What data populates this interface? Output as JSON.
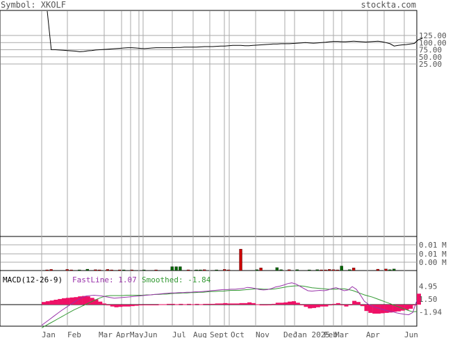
{
  "header": {
    "symbol_text": "Symbol: XKOLF",
    "site": "stockta.com"
  },
  "chart_data": [
    {
      "type": "line",
      "panel": "price",
      "ytick_labels": [
        "125.00",
        "100.00",
        "75.00",
        "50.00",
        "25.00"
      ],
      "ytick_values": [
        125,
        100,
        75,
        50,
        25
      ],
      "series": [
        {
          "values": [
            900,
            75,
            75,
            74,
            73,
            72,
            71,
            70,
            68,
            69,
            71,
            72,
            74,
            75,
            76,
            77,
            78,
            79,
            80,
            81,
            82,
            82,
            81,
            80,
            79,
            80,
            81,
            82,
            82,
            82,
            82,
            82,
            83,
            83,
            84,
            84,
            84,
            84,
            85,
            86,
            86,
            86,
            87,
            88,
            88,
            89,
            90,
            90,
            90,
            89,
            89,
            90,
            91,
            92,
            93,
            94,
            95,
            95,
            96,
            96,
            96,
            97,
            98,
            99,
            100,
            99,
            98,
            99,
            100,
            101,
            103,
            104,
            104,
            103,
            103,
            104,
            105,
            104,
            103,
            102,
            103,
            104,
            105,
            103,
            100,
            96,
            88,
            90,
            92,
            93,
            95,
            97,
            110,
            115
          ]
        }
      ]
    },
    {
      "type": "bar",
      "panel": "volume",
      "ytick_labels": [
        "0.01 M",
        "0.01 M",
        "0.00 M"
      ],
      "bars": [
        {
          "i": 1,
          "v": 0.0003,
          "c": "#cc0000"
        },
        {
          "i": 2,
          "v": 0.0005,
          "c": "#cc0000"
        },
        {
          "i": 6,
          "v": 0.0005,
          "c": "#cc0000"
        },
        {
          "i": 7,
          "v": 0.0003,
          "c": "#cc0000"
        },
        {
          "i": 9,
          "v": 0.0003,
          "c": "#006600"
        },
        {
          "i": 11,
          "v": 0.0006,
          "c": "#006600"
        },
        {
          "i": 13,
          "v": 0.0004,
          "c": "#cc0000"
        },
        {
          "i": 14,
          "v": 0.0003,
          "c": "#cc0000"
        },
        {
          "i": 16,
          "v": 0.0005,
          "c": "#cc0000"
        },
        {
          "i": 17,
          "v": 0.0002,
          "c": "#cc0000"
        },
        {
          "i": 19,
          "v": 0.0003,
          "c": "#cc0000"
        },
        {
          "i": 20,
          "v": 0.0002,
          "c": "#006600"
        },
        {
          "i": 22,
          "v": 0.0003,
          "c": "#cc0000"
        },
        {
          "i": 25,
          "v": 0.0003,
          "c": "#006600"
        },
        {
          "i": 28,
          "v": 0.0002,
          "c": "#cc0000"
        },
        {
          "i": 32,
          "v": 0.0017,
          "c": "#006600"
        },
        {
          "i": 33,
          "v": 0.0017,
          "c": "#006600"
        },
        {
          "i": 34,
          "v": 0.0017,
          "c": "#006600"
        },
        {
          "i": 36,
          "v": 0.0002,
          "c": "#cc0000"
        },
        {
          "i": 38,
          "v": 0.0003,
          "c": "#006600"
        },
        {
          "i": 39,
          "v": 0.0003,
          "c": "#006600"
        },
        {
          "i": 40,
          "v": 0.0004,
          "c": "#cc0000"
        },
        {
          "i": 43,
          "v": 0.0002,
          "c": "#006600"
        },
        {
          "i": 45,
          "v": 0.0005,
          "c": "#cc0000"
        },
        {
          "i": 46,
          "v": 0.0002,
          "c": "#cc0000"
        },
        {
          "i": 49,
          "v": 0.0095,
          "c": "#cc0000"
        },
        {
          "i": 53,
          "v": 0.0004,
          "c": "#006600"
        },
        {
          "i": 54,
          "v": 0.0012,
          "c": "#cc0000"
        },
        {
          "i": 58,
          "v": 0.0013,
          "c": "#006600"
        },
        {
          "i": 59,
          "v": 0.0004,
          "c": "#006600"
        },
        {
          "i": 61,
          "v": 0.0004,
          "c": "#cc0000"
        },
        {
          "i": 63,
          "v": 0.0004,
          "c": "#006600"
        },
        {
          "i": 66,
          "v": 0.0003,
          "c": "#006600"
        },
        {
          "i": 68,
          "v": 0.0004,
          "c": "#006600"
        },
        {
          "i": 69,
          "v": 0.0003,
          "c": "#cc0000"
        },
        {
          "i": 70,
          "v": 0.0003,
          "c": "#cc0000"
        },
        {
          "i": 71,
          "v": 0.0005,
          "c": "#cc0000"
        },
        {
          "i": 72,
          "v": 0.0004,
          "c": "#cc0000"
        },
        {
          "i": 73,
          "v": 0.0002,
          "c": "#cc0000"
        },
        {
          "i": 74,
          "v": 0.002,
          "c": "#006600"
        },
        {
          "i": 76,
          "v": 0.0004,
          "c": "#006600"
        },
        {
          "i": 77,
          "v": 0.0012,
          "c": "#cc0000"
        },
        {
          "i": 83,
          "v": 0.0006,
          "c": "#cc0000"
        },
        {
          "i": 85,
          "v": 0.0007,
          "c": "#cc0000"
        },
        {
          "i": 86,
          "v": 0.0004,
          "c": "#006600"
        },
        {
          "i": 87,
          "v": 0.0007,
          "c": "#006600"
        }
      ]
    },
    {
      "type": "line",
      "panel": "macd",
      "title": "MACD(12-26-9)",
      "fastline_label": "FastLine: 1.07",
      "smoothed_label": "Smoothed: -1.84",
      "ytick_labels": [
        "4.95",
        "1.50",
        "-1.94"
      ],
      "ytick_values": [
        4.95,
        1.5,
        -1.94
      ],
      "series": [
        {
          "name": "FastLine",
          "color": "#9933aa",
          "values": [
            -5.5,
            -4.7,
            -3.9,
            -3.1,
            -2.3,
            -1.5,
            -0.8,
            -0.1,
            0.6,
            1.3,
            1.9,
            2.3,
            2.4,
            2.5,
            2.4,
            2.3,
            2.1,
            1.9,
            1.7,
            1.8,
            1.9,
            2.0,
            2.1,
            2.2,
            2.3,
            2.4,
            2.5,
            2.6,
            2.7,
            2.8,
            2.9,
            3.0,
            3.1,
            3.1,
            3.2,
            3.2,
            3.3,
            3.3,
            3.4,
            3.4,
            3.5,
            3.6,
            3.7,
            3.8,
            3.9,
            4.0,
            4.0,
            4.1,
            4.1,
            4.2,
            4.3,
            4.6,
            4.5,
            4.3,
            4.0,
            3.9,
            4.0,
            4.3,
            4.7,
            4.9,
            5.2,
            5.6,
            5.8,
            5.5,
            4.9,
            4.3,
            3.7,
            3.6,
            3.7,
            3.8,
            3.7,
            3.9,
            4.3,
            4.5,
            4.1,
            3.7,
            3.9,
            4.8,
            4.1,
            2.6,
            0.9,
            0.1,
            -0.4,
            -0.8,
            -1.1,
            -1.4,
            -1.7,
            -1.9,
            -2.2,
            -2.4,
            -2.6,
            -2.7,
            -2.1,
            1.07
          ]
        },
        {
          "name": "Smoothed",
          "color": "#339933",
          "values": [
            -6.2,
            -5.6,
            -5.0,
            -4.4,
            -3.8,
            -3.2,
            -2.6,
            -2.0,
            -1.4,
            -0.9,
            -0.4,
            0.1,
            0.6,
            1.1,
            1.6,
            2.0,
            2.3,
            2.4,
            2.4,
            2.4,
            2.4,
            2.5,
            2.5,
            2.5,
            2.5,
            2.5,
            2.6,
            2.6,
            2.7,
            2.7,
            2.8,
            2.8,
            2.9,
            3.0,
            3.0,
            3.1,
            3.1,
            3.2,
            3.2,
            3.3,
            3.3,
            3.4,
            3.5,
            3.5,
            3.6,
            3.6,
            3.7,
            3.8,
            3.8,
            3.8,
            3.9,
            4.0,
            4.1,
            4.2,
            4.2,
            4.1,
            4.1,
            4.1,
            4.2,
            4.4,
            4.6,
            4.8,
            4.9,
            5.0,
            5.0,
            4.9,
            4.7,
            4.5,
            4.4,
            4.3,
            4.2,
            4.1,
            4.1,
            4.1,
            4.2,
            4.2,
            4.0,
            3.8,
            3.4,
            3.0,
            2.6,
            2.3,
            2.0,
            1.6,
            1.2,
            0.8,
            0.4,
            0.0,
            -0.4,
            -0.8,
            -1.2,
            -1.6,
            -1.9,
            -1.84
          ]
        }
      ],
      "histogram_color": "#ee1166"
    }
  ],
  "x_axis": {
    "labels": [
      "Jan",
      "Feb",
      "Mar",
      "AprMayJun",
      "Jul",
      "Aug",
      "Sept",
      "Oct",
      "Nov",
      "Dec",
      "Jan 2025",
      "Feb",
      "Mar",
      "Apr",
      "Jun"
    ]
  }
}
